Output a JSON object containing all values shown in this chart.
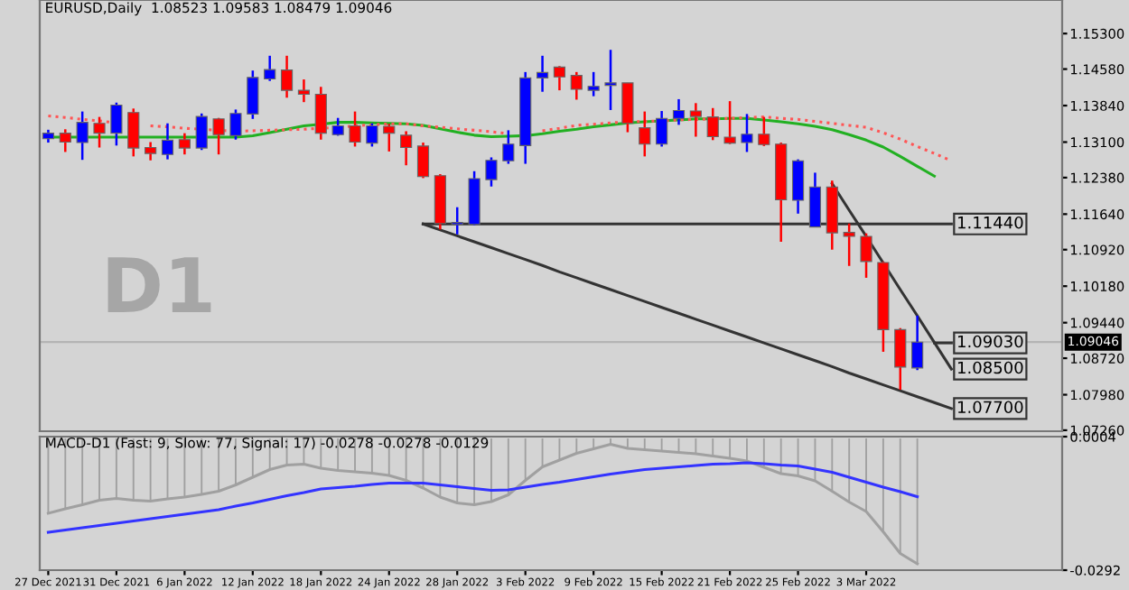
{
  "chart_data": [
    {
      "type": "candlestick",
      "title": "EURUSD,Daily  1.08523 1.09583 1.08479 1.09046",
      "categories": [
        null,
        null,
        null,
        null,
        null,
        null,
        null,
        null,
        null,
        null,
        null,
        null,
        null,
        null,
        null,
        null,
        null,
        null,
        null,
        null,
        null,
        null,
        null,
        null,
        null,
        null,
        null,
        null,
        null,
        null,
        null,
        null,
        null,
        null,
        null,
        null,
        null,
        null,
        null,
        null,
        null,
        null,
        null,
        null,
        null,
        null,
        null,
        null,
        null,
        null,
        null,
        null,
        null,
        null,
        null,
        null,
        null,
        null,
        null,
        null
      ],
      "ohlc": [
        [
          1.1317,
          1.1335,
          1.1309,
          1.1328
        ],
        [
          1.1328,
          1.1336,
          1.129,
          1.131
        ],
        [
          1.1309,
          1.1372,
          1.1274,
          1.135
        ],
        [
          1.1348,
          1.1361,
          1.1299,
          1.1328
        ],
        [
          1.1328,
          1.139,
          1.1303,
          1.1385
        ],
        [
          1.137,
          1.1378,
          1.1281,
          1.1298
        ],
        [
          1.1299,
          1.131,
          1.1273,
          1.1287
        ],
        [
          1.1285,
          1.1348,
          1.1275,
          1.1314
        ],
        [
          1.1315,
          1.1328,
          1.1285,
          1.1298
        ],
        [
          1.1298,
          1.1368,
          1.1294,
          1.1362
        ],
        [
          1.1357,
          1.1359,
          1.1285,
          1.1325
        ],
        [
          1.1323,
          1.1376,
          1.1315,
          1.1368
        ],
        [
          1.1367,
          1.1455,
          1.1357,
          1.1441
        ],
        [
          1.1438,
          1.1485,
          1.1434,
          1.1457
        ],
        [
          1.1456,
          1.1485,
          1.14,
          1.1415
        ],
        [
          1.1415,
          1.1437,
          1.1391,
          1.1407
        ],
        [
          1.1407,
          1.1422,
          1.1315,
          1.1328
        ],
        [
          1.1325,
          1.1359,
          1.1323,
          1.1343
        ],
        [
          1.1343,
          1.1372,
          1.1301,
          1.131
        ],
        [
          1.1308,
          1.1348,
          1.1301,
          1.1343
        ],
        [
          1.1342,
          1.1347,
          1.1291,
          1.1328
        ],
        [
          1.1324,
          1.1332,
          1.1263,
          1.1299
        ],
        [
          1.1302,
          1.1309,
          1.1237,
          1.124
        ],
        [
          1.1242,
          1.1245,
          1.1133,
          1.1145
        ],
        [
          1.1143,
          1.1178,
          1.1123,
          1.1147
        ],
        [
          1.1143,
          1.1251,
          1.1141,
          1.1236
        ],
        [
          1.1234,
          1.1279,
          1.122,
          1.1273
        ],
        [
          1.1272,
          1.1334,
          1.1266,
          1.1306
        ],
        [
          1.1303,
          1.1452,
          1.1266,
          1.144
        ],
        [
          1.144,
          1.1485,
          1.1412,
          1.1451
        ],
        [
          1.1462,
          1.1464,
          1.1415,
          1.1442
        ],
        [
          1.1445,
          1.1452,
          1.1396,
          1.1417
        ],
        [
          1.1415,
          1.1452,
          1.1403,
          1.1423
        ],
        [
          1.1425,
          1.1497,
          1.1375,
          1.143
        ],
        [
          1.143,
          1.143,
          1.133,
          1.1348
        ],
        [
          1.1339,
          1.1372,
          1.1281,
          1.1306
        ],
        [
          1.1306,
          1.1373,
          1.1301,
          1.1358
        ],
        [
          1.1358,
          1.1397,
          1.1345,
          1.1374
        ],
        [
          1.1373,
          1.1389,
          1.1321,
          1.1362
        ],
        [
          1.1361,
          1.1379,
          1.1314,
          1.1321
        ],
        [
          1.132,
          1.1393,
          1.1306,
          1.1308
        ],
        [
          1.1309,
          1.1367,
          1.129,
          1.1326
        ],
        [
          1.1326,
          1.1361,
          1.1302,
          1.1305
        ],
        [
          1.1306,
          1.1309,
          1.1108,
          1.1193
        ],
        [
          1.1192,
          1.1275,
          1.1165,
          1.1272
        ],
        [
          1.1138,
          1.1248,
          1.1138,
          1.1219
        ],
        [
          1.1219,
          1.1232,
          1.1092,
          1.1126
        ],
        [
          1.1127,
          1.1145,
          1.1059,
          1.1119
        ],
        [
          1.1119,
          1.1125,
          1.1035,
          1.1068
        ],
        [
          1.1066,
          1.1068,
          1.0885,
          1.093
        ],
        [
          1.093,
          1.0933,
          1.0808,
          1.0854
        ],
        [
          1.08523,
          1.09583,
          1.08479,
          1.09046
        ],
        null,
        null,
        null,
        null,
        null,
        null,
        null,
        null
      ],
      "colors": [
        "#0000ff",
        "#ff0000",
        "#0000ff",
        "#ff0000",
        "#0000ff",
        "#ff0000",
        "#ff0000",
        "#0000ff",
        "#ff0000",
        "#0000ff",
        "#ff0000",
        "#0000ff",
        "#0000ff",
        "#0000ff",
        "#ff0000",
        "#ff0000",
        "#ff0000",
        "#0000ff",
        "#ff0000",
        "#0000ff",
        "#ff0000",
        "#ff0000",
        "#ff0000",
        "#ff0000",
        "#0000ff",
        "#0000ff",
        "#0000ff",
        "#0000ff",
        "#0000ff",
        "#0000ff",
        "#ff0000",
        "#ff0000",
        "#0000ff",
        "#0000ff",
        "#ff0000",
        "#ff0000",
        "#0000ff",
        "#0000ff",
        "#ff0000",
        "#ff0000",
        "#ff0000",
        "#0000ff",
        "#ff0000",
        "#ff0000",
        "#0000ff",
        "#0000ff",
        "#ff0000",
        "#ff0000",
        "#ff0000",
        "#ff0000",
        "#ff0000",
        "#0000ff",
        null,
        null,
        null,
        null,
        null,
        null,
        null,
        null
      ],
      "series": [
        {
          "type": "line",
          "color": "#22b022",
          "line_style": "solid",
          "values": [
            1.132,
            1.132,
            1.132,
            1.132,
            1.132,
            1.132,
            1.132,
            1.132,
            1.132,
            1.132,
            1.132,
            1.132,
            1.1323,
            1.1329,
            1.1336,
            1.1343,
            1.1346,
            1.135,
            1.135,
            1.1349,
            1.1348,
            1.1347,
            1.1344,
            1.1337,
            1.133,
            1.1324,
            1.1321,
            1.1322,
            1.1323,
            1.1327,
            1.1332,
            1.1336,
            1.1341,
            1.1345,
            1.1349,
            1.1351,
            1.1353,
            1.1355,
            1.1357,
            1.1357,
            1.1358,
            1.1358,
            1.1355,
            1.1351,
            1.1347,
            1.1342,
            1.1335,
            1.1325,
            1.1314,
            1.13,
            1.1281,
            1.1261,
            1.1241,
            null,
            null,
            null,
            null,
            null,
            null,
            null
          ]
        },
        {
          "type": "line",
          "color": "#ff5555",
          "line_style": "dotted",
          "values": [
            1.1363,
            1.136,
            1.1356,
            1.1353,
            1.1349,
            null,
            1.1343,
            1.1341,
            1.1338,
            1.1336,
            1.1334,
            1.1332,
            1.1333,
            1.1334,
            1.1335,
            1.1336,
            1.1338,
            1.134,
            1.1343,
            1.1345,
            1.1347,
            1.1347,
            1.1343,
            1.134,
            1.1337,
            1.1334,
            1.1331,
            1.1327,
            null,
            1.1333,
            1.1338,
            1.1344,
            1.1346,
            1.1349,
            1.1351,
            1.1352,
            1.1353,
            1.1355,
            1.1356,
            1.1357,
            1.1358,
            1.136,
            1.1361,
            1.1358,
            1.1356,
            1.1352,
            1.1348,
            1.1344,
            1.134,
            1.1329,
            1.1316,
            1.1301,
            1.1287,
            1.1272,
            null,
            null,
            null,
            null,
            null,
            null
          ]
        },
        {
          "type": "line",
          "name": "1.07700",
          "color": "#333333",
          "line_style": "solid",
          "values": [
            null,
            null,
            null,
            null,
            null,
            null,
            null,
            null,
            null,
            null,
            null,
            null,
            null,
            null,
            null,
            null,
            null,
            null,
            null,
            null,
            null,
            null,
            1.1144,
            1.1132,
            1.112,
            1.1108,
            1.1096,
            1.1084,
            1.1072,
            1.106,
            1.1047,
            1.1035,
            1.1023,
            1.1011,
            1.0999,
            1.0987,
            1.0975,
            1.0963,
            1.0951,
            1.0939,
            1.0927,
            1.0915,
            1.0903,
            1.0891,
            1.0879,
            1.0867,
            1.0855,
            1.0842,
            1.083,
            1.0818,
            1.0806,
            1.0794,
            1.0782,
            1.077,
            null,
            null,
            null,
            null,
            null,
            null
          ]
        },
        {
          "type": "line",
          "name": "1.08500",
          "color": "#333333",
          "line_style": "solid",
          "values": [
            null,
            null,
            null,
            null,
            null,
            null,
            null,
            null,
            null,
            null,
            null,
            null,
            null,
            null,
            null,
            null,
            null,
            null,
            null,
            null,
            null,
            null,
            null,
            null,
            null,
            null,
            null,
            null,
            null,
            null,
            null,
            null,
            null,
            null,
            null,
            null,
            null,
            null,
            null,
            null,
            null,
            null,
            null,
            null,
            null,
            null,
            1.1226,
            1.1172,
            1.1119,
            1.1065,
            1.1011,
            1.0958,
            1.0904,
            1.085,
            null,
            null,
            null,
            null,
            null,
            null
          ]
        },
        {
          "type": "line",
          "name": "1.11440",
          "color": "#333333",
          "line_style": "solid",
          "values": [
            null,
            null,
            null,
            null,
            null,
            null,
            null,
            null,
            null,
            null,
            null,
            null,
            null,
            null,
            null,
            null,
            null,
            null,
            null,
            null,
            null,
            null,
            1.1144,
            1.1144,
            1.1144,
            1.1144,
            1.1144,
            1.1144,
            1.1144,
            1.1144,
            1.1144,
            1.1144,
            1.1144,
            1.1144,
            1.1144,
            1.1144,
            1.1144,
            1.1144,
            1.1144,
            1.1144,
            1.1144,
            1.1144,
            1.1144,
            1.1144,
            1.1144,
            1.1144,
            1.1144,
            1.1144,
            1.1144,
            1.1144,
            1.1144,
            1.1144,
            1.1144,
            1.1144,
            null,
            null,
            null,
            null,
            null,
            null
          ]
        },
        {
          "type": "line",
          "name": "1.09030",
          "color": "#333333",
          "line_style": "solid",
          "values": [
            null,
            null,
            null,
            null,
            null,
            null,
            null,
            null,
            null,
            null,
            null,
            null,
            null,
            null,
            null,
            null,
            null,
            null,
            null,
            null,
            null,
            null,
            null,
            null,
            null,
            null,
            null,
            null,
            null,
            null,
            null,
            null,
            null,
            null,
            null,
            null,
            null,
            null,
            null,
            null,
            null,
            null,
            null,
            null,
            null,
            null,
            null,
            null,
            null,
            null,
            null,
            null,
            1.0903,
            1.0903,
            null,
            null,
            null,
            null,
            null,
            null
          ]
        }
      ],
      "ref_lines": [
        {
          "axis": "y",
          "value": 1.09046,
          "label": "1.09046",
          "color": "#b4b4b4"
        }
      ],
      "annotations": [
        "D1"
      ],
      "ylim": [
        1.0724,
        1.1598
      ],
      "yticks": [
        {
          "value": 1.153,
          "label": "1.15300"
        },
        {
          "value": 1.1458,
          "label": "1.14580"
        },
        {
          "value": 1.1384,
          "label": "1.13840"
        },
        {
          "value": 1.131,
          "label": "1.13100"
        },
        {
          "value": 1.1238,
          "label": "1.12380"
        },
        {
          "value": 1.1164,
          "label": "1.11640"
        },
        {
          "value": 1.1092,
          "label": "1.10920"
        },
        {
          "value": 1.1018,
          "label": "1.10180"
        },
        {
          "value": 1.0944,
          "label": "1.09440"
        },
        {
          "value": 1.0872,
          "label": "1.08720"
        },
        {
          "value": 1.0798,
          "label": "1.07980"
        },
        {
          "value": 1.0726,
          "label": "1.07260"
        }
      ],
      "tick_labels": "y",
      "grid": false,
      "legend": "right"
    },
    {
      "type": "bar",
      "title": "MACD-D1 (Fast: 9, Slow: 77, Signal: 17) -0.0278 -0.0278 -0.0129",
      "categories": [
        "27 Dec 2021",
        null,
        null,
        null,
        "31 Dec 2021",
        null,
        null,
        null,
        "6 Jan 2022",
        null,
        null,
        null,
        "12 Jan 2022",
        null,
        null,
        null,
        "18 Jan 2022",
        null,
        null,
        null,
        "24 Jan 2022",
        null,
        null,
        null,
        "28 Jan 2022",
        null,
        null,
        null,
        "3 Feb 2022",
        null,
        null,
        null,
        "9 Feb 2022",
        null,
        null,
        null,
        "15 Feb 2022",
        null,
        null,
        null,
        "21 Feb 2022",
        null,
        null,
        null,
        "25 Feb 2022",
        null,
        null,
        null,
        "3 Mar 2022",
        null,
        null,
        null,
        null,
        null,
        null,
        null,
        null,
        null,
        null,
        null
      ],
      "series": [
        {
          "type": "bar",
          "color": "#a0a0a0",
          "values": [
            -0.0166,
            -0.0156,
            -0.0147,
            -0.0137,
            -0.0133,
            -0.0137,
            -0.0139,
            -0.0134,
            -0.013,
            -0.0124,
            -0.0117,
            -0.0103,
            -0.0086,
            -0.0069,
            -0.0059,
            -0.0057,
            -0.0066,
            -0.0071,
            -0.0074,
            -0.0077,
            -0.0082,
            -0.0093,
            -0.011,
            -0.013,
            -0.0143,
            -0.0147,
            -0.014,
            -0.0125,
            -0.0093,
            -0.0063,
            -0.0048,
            -0.0033,
            -0.0023,
            -0.0013,
            -0.0022,
            -0.0025,
            -0.0028,
            -0.0031,
            -0.0034,
            -0.0039,
            -0.0044,
            -0.005,
            -0.0064,
            -0.0078,
            -0.0083,
            -0.0094,
            -0.0117,
            -0.0141,
            -0.0162,
            -0.0207,
            -0.0255,
            -0.0278,
            null,
            null,
            null,
            null,
            null,
            null,
            null,
            null
          ]
        },
        {
          "type": "line",
          "color": "#a0a0a0",
          "line_style": "solid",
          "values": [
            -0.0166,
            -0.0156,
            -0.0147,
            -0.0137,
            -0.0133,
            -0.0137,
            -0.0139,
            -0.0134,
            -0.013,
            -0.0124,
            -0.0117,
            -0.0103,
            -0.0086,
            -0.0069,
            -0.0059,
            -0.0057,
            -0.0066,
            -0.0071,
            -0.0074,
            -0.0077,
            -0.0082,
            -0.0093,
            -0.011,
            -0.013,
            -0.0143,
            -0.0147,
            -0.014,
            -0.0125,
            -0.0093,
            -0.0063,
            -0.0048,
            -0.0033,
            -0.0023,
            -0.0013,
            -0.0022,
            -0.0025,
            -0.0028,
            -0.0031,
            -0.0034,
            -0.0039,
            -0.0044,
            -0.005,
            -0.0064,
            -0.0078,
            -0.0083,
            -0.0094,
            -0.0117,
            -0.0141,
            -0.0162,
            -0.0207,
            -0.0255,
            -0.0278,
            null,
            null,
            null,
            null,
            null,
            null,
            null,
            null
          ]
        },
        {
          "type": "line",
          "color": "#3333ff",
          "line_style": "solid",
          "values": [
            -0.0208,
            -0.0203,
            -0.0198,
            -0.0193,
            -0.0188,
            -0.0183,
            -0.0178,
            -0.0173,
            -0.0168,
            -0.0163,
            -0.0158,
            -0.015,
            -0.0143,
            -0.0135,
            -0.0127,
            -0.012,
            -0.0112,
            -0.0109,
            -0.0106,
            -0.0102,
            -0.0099,
            -0.0099,
            -0.0099,
            -0.0103,
            -0.0107,
            -0.0111,
            -0.0115,
            -0.0114,
            -0.0108,
            -0.0102,
            -0.0097,
            -0.0091,
            -0.0085,
            -0.0079,
            -0.0074,
            -0.0069,
            -0.0066,
            -0.0063,
            -0.006,
            -0.0057,
            -0.0056,
            -0.0054,
            -0.0056,
            -0.0059,
            -0.0061,
            -0.0068,
            -0.0075,
            -0.0086,
            -0.0097,
            -0.0108,
            -0.0118,
            -0.0129,
            null,
            null,
            null,
            null,
            null,
            null,
            null,
            null
          ]
        }
      ],
      "ylim": [
        -0.0292,
        0.0004
      ],
      "yticks": [
        0.0004,
        -0.0292
      ],
      "grid": false
    }
  ]
}
